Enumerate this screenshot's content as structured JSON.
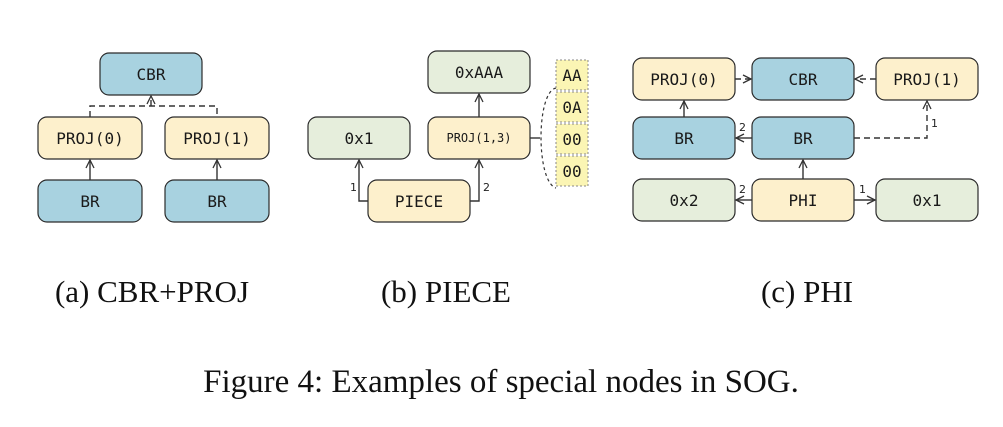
{
  "panel_a": {
    "cbr": "CBR",
    "proj0": "PROJ(0)",
    "proj1": "PROJ(1)",
    "br_left": "BR",
    "br_right": "BR",
    "caption": "(a) CBR+PROJ"
  },
  "panel_b": {
    "constant": "0xAAA",
    "proj": "PROJ(1,3)",
    "x1": "0x1",
    "piece": "PIECE",
    "edge1": "1",
    "edge2": "2",
    "bytes": [
      "AA",
      "0A",
      "00",
      "00"
    ],
    "caption": "(b) PIECE"
  },
  "panel_c": {
    "proj0": "PROJ(0)",
    "cbr": "CBR",
    "proj1": "PROJ(1)",
    "br_left": "BR",
    "br_mid": "BR",
    "x2": "0x2",
    "phi": "PHI",
    "x1": "0x1",
    "edge_br": "2",
    "edge_proj1": "1",
    "edge_phi_left": "2",
    "edge_phi_right": "1",
    "caption": "(c) PHI"
  },
  "figure_caption": "Figure 4: Examples of special nodes in SOG."
}
